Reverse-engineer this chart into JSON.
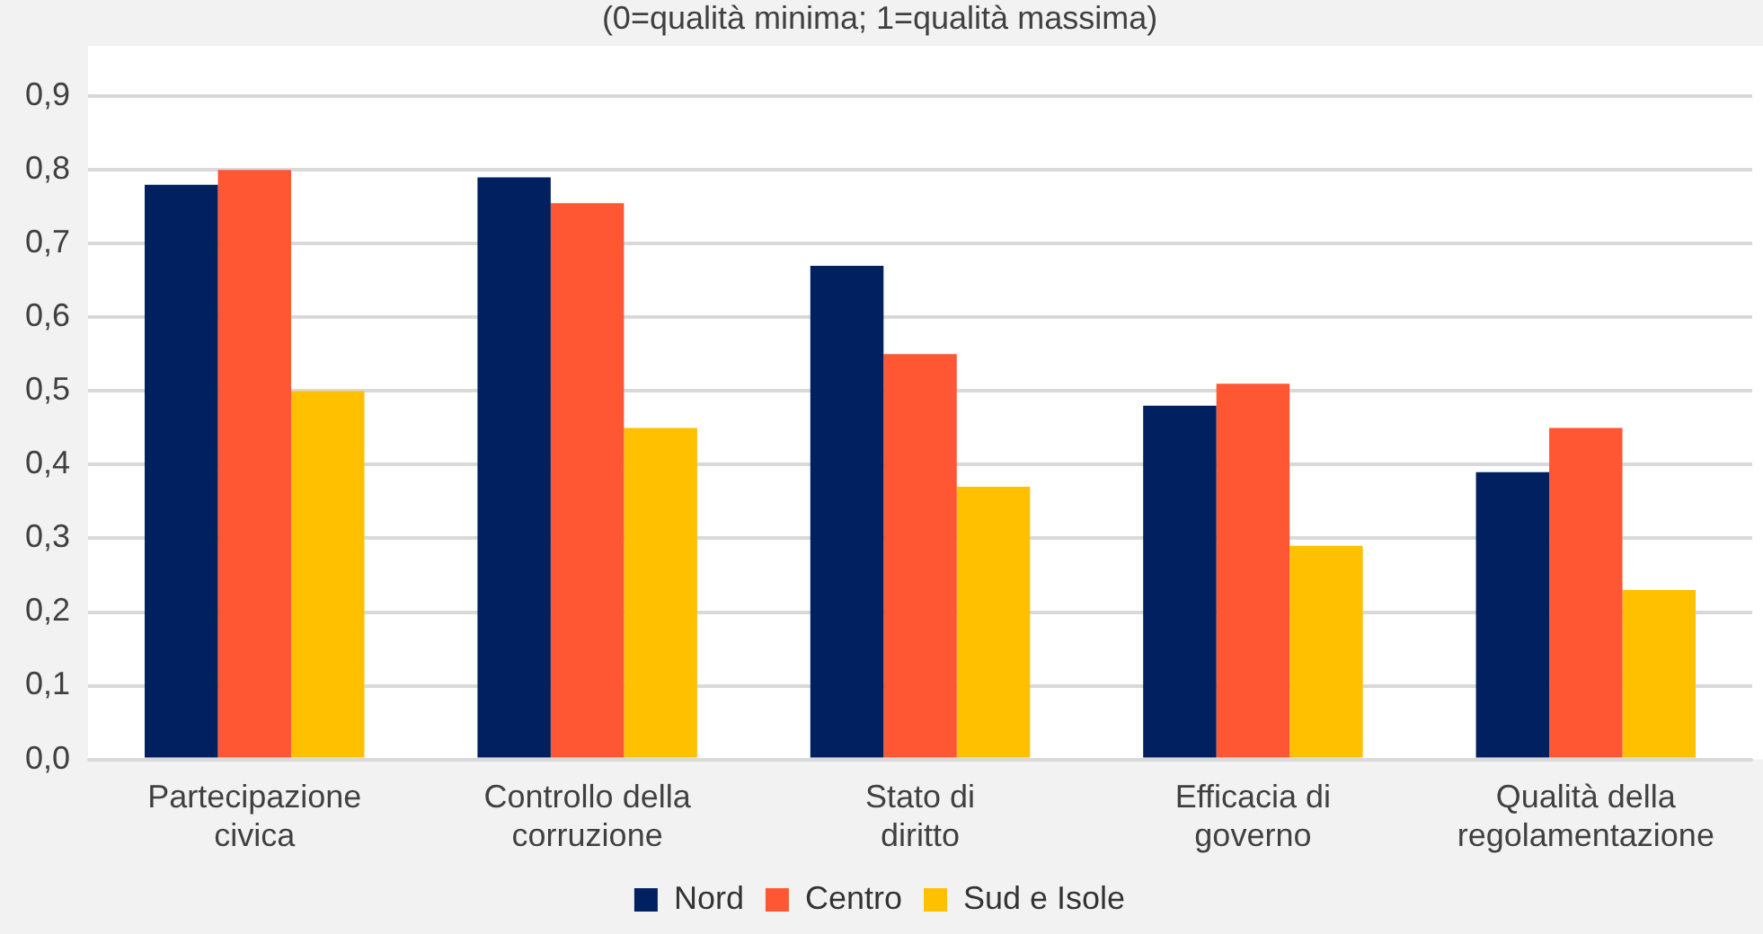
{
  "chart_data": {
    "type": "bar",
    "subtitle": "(0=qualità minima; 1=qualità massima)",
    "categories": [
      "Partecipazione civica",
      "Controllo della corruzione",
      "Stato di diritto",
      "Efficacia di governo",
      "Qualità della regolamentazione"
    ],
    "series": [
      {
        "name": "Nord",
        "color": "#002060",
        "values": [
          0.78,
          0.79,
          0.67,
          0.48,
          0.39
        ]
      },
      {
        "name": "Centro",
        "color": "#ff5733",
        "values": [
          0.8,
          0.755,
          0.55,
          0.51,
          0.45
        ]
      },
      {
        "name": "Sud e Isole",
        "color": "#ffc000",
        "values": [
          0.5,
          0.45,
          0.37,
          0.29,
          0.23
        ]
      }
    ],
    "ylim": [
      0,
      0.9
    ],
    "yticks": [
      {
        "value": 0,
        "label": "0,0"
      },
      {
        "value": 0.1,
        "label": "0,1"
      },
      {
        "value": 0.2,
        "label": "0,2"
      },
      {
        "value": 0.3,
        "label": "0,3"
      },
      {
        "value": 0.4,
        "label": "0,4"
      },
      {
        "value": 0.5,
        "label": "0,5"
      },
      {
        "value": 0.6,
        "label": "0,6"
      },
      {
        "value": 0.7,
        "label": "0,7"
      },
      {
        "value": 0.8,
        "label": "0,8"
      },
      {
        "value": 0.9,
        "label": "0,9"
      }
    ],
    "grid": "y",
    "legend": "bottom"
  }
}
